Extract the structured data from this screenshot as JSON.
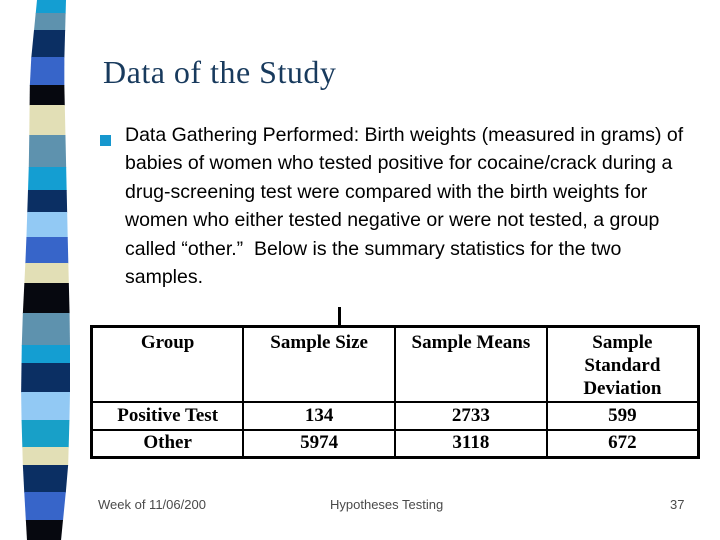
{
  "slide": {
    "title": "Data of the Study",
    "body_text": "Data Gathering Performed: Birth weights (measured in grams) of babies of women who tested positive for cocaine/crack during a drug-screening test were compared with the birth weights for women who either tested negative or were not tested, a group called “other.”  Below is the summary statistics for the two samples.",
    "footer": {
      "left": "Week of 11/06/200",
      "center": "Hypotheses Testing",
      "page_number": "37"
    }
  },
  "table": {
    "headers": [
      "Group",
      "Sample Size",
      "Sample Means",
      "Sample Standard Deviation"
    ],
    "rows": [
      [
        "Positive Test",
        "134",
        "2733",
        "599"
      ],
      [
        "Other",
        "5974",
        "3118",
        "672"
      ]
    ]
  },
  "colors": {
    "background": "#FFFFFF",
    "title_text": "#183A5D",
    "bullet_square": "#1697CE",
    "body_text": "#000000",
    "table_border": "#000000",
    "footer_text": "#4A4A4A"
  },
  "ribbon": {
    "segments": [
      {
        "color": "#149ED2",
        "to": 13
      },
      {
        "color": "#5E92AE",
        "to": 30
      },
      {
        "color": "#0B2F63",
        "to": 57
      },
      {
        "color": "#3765C9",
        "to": 85
      },
      {
        "color": "#06080F",
        "to": 105
      },
      {
        "color": "#E2DFB6",
        "to": 135
      },
      {
        "color": "#5E92AE",
        "to": 167
      },
      {
        "color": "#149ED2",
        "to": 190
      },
      {
        "color": "#0B2F63",
        "to": 212
      },
      {
        "color": "#92C9F4",
        "to": 237
      },
      {
        "color": "#3765C9",
        "to": 263
      },
      {
        "color": "#E2DFB6",
        "to": 283
      },
      {
        "color": "#06080F",
        "to": 313
      },
      {
        "color": "#5E92AE",
        "to": 345
      },
      {
        "color": "#149ED2",
        "to": 363
      },
      {
        "color": "#0B2F63",
        "to": 392
      },
      {
        "color": "#92C9F4",
        "to": 420
      },
      {
        "color": "#18A0C8",
        "to": 447
      },
      {
        "color": "#E2DFB6",
        "to": 465
      },
      {
        "color": "#0B2F63",
        "to": 492
      },
      {
        "color": "#3765C9",
        "to": 520
      },
      {
        "color": "#06080F",
        "to": 540
      }
    ]
  }
}
